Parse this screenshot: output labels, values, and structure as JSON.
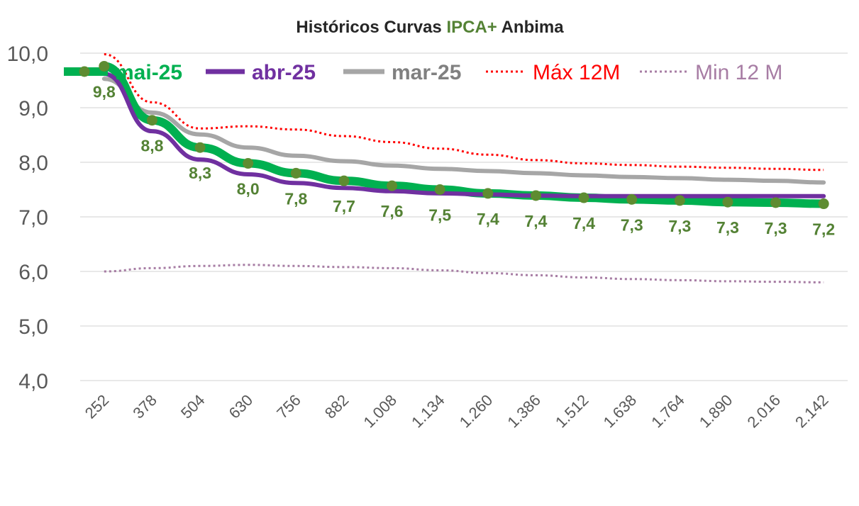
{
  "chart_data": {
    "type": "line",
    "title_parts": [
      {
        "text": "Históricos Curvas ",
        "color": "#262626"
      },
      {
        "text": "IPCA+",
        "color": "#548235"
      },
      {
        "text": " Anbima",
        "color": "#262626"
      }
    ],
    "categories": [
      "252",
      "378",
      "504",
      "630",
      "756",
      "882",
      "1.008",
      "1.134",
      "1.260",
      "1.386",
      "1.512",
      "1.638",
      "1.764",
      "1.890",
      "2.016",
      "2.142"
    ],
    "ylim": [
      4.0,
      10.0
    ],
    "yticks": [
      "4,0",
      "5,0",
      "6,0",
      "7,0",
      "8,0",
      "9,0",
      "10,0"
    ],
    "grid": true,
    "legend_position": "top",
    "series": [
      {
        "name": "mai-25",
        "color": "#00B050",
        "style": "solid",
        "markers": true,
        "values": [
          9.76,
          8.77,
          8.27,
          7.98,
          7.8,
          7.66,
          7.57,
          7.5,
          7.43,
          7.39,
          7.35,
          7.32,
          7.3,
          7.27,
          7.26,
          7.24
        ]
      },
      {
        "name": "abr-25",
        "color": "#7030A0",
        "style": "solid",
        "markers": false,
        "values": [
          9.62,
          8.57,
          8.05,
          7.78,
          7.62,
          7.53,
          7.47,
          7.43,
          7.41,
          7.39,
          7.38,
          7.38,
          7.38,
          7.38,
          7.38,
          7.38
        ]
      },
      {
        "name": "mar-25",
        "color": "#A6A6A6",
        "style": "solid",
        "markers": false,
        "values": [
          9.53,
          8.91,
          8.51,
          8.27,
          8.12,
          8.02,
          7.94,
          7.88,
          7.84,
          7.8,
          7.76,
          7.73,
          7.71,
          7.68,
          7.66,
          7.63
        ]
      },
      {
        "name": "Máx 12M",
        "color": "#FF0000",
        "style": "dotted",
        "markers": false,
        "values": [
          9.98,
          9.1,
          8.62,
          8.66,
          8.6,
          8.48,
          8.37,
          8.25,
          8.14,
          8.04,
          7.98,
          7.95,
          7.92,
          7.9,
          7.88,
          7.86
        ]
      },
      {
        "name": "Min 12 M",
        "color": "#A77DA4",
        "style": "dotted",
        "markers": false,
        "values": [
          6.0,
          6.06,
          6.1,
          6.12,
          6.1,
          6.08,
          6.06,
          6.02,
          5.97,
          5.93,
          5.89,
          5.86,
          5.84,
          5.82,
          5.81,
          5.8
        ]
      }
    ],
    "data_labels": [
      "9,8",
      "8,8",
      "8,3",
      "8,0",
      "7,8",
      "7,7",
      "7,6",
      "7,5",
      "7,4",
      "7,4",
      "7,4",
      "7,3",
      "7,3",
      "7,3",
      "7,3",
      "7,2"
    ]
  }
}
